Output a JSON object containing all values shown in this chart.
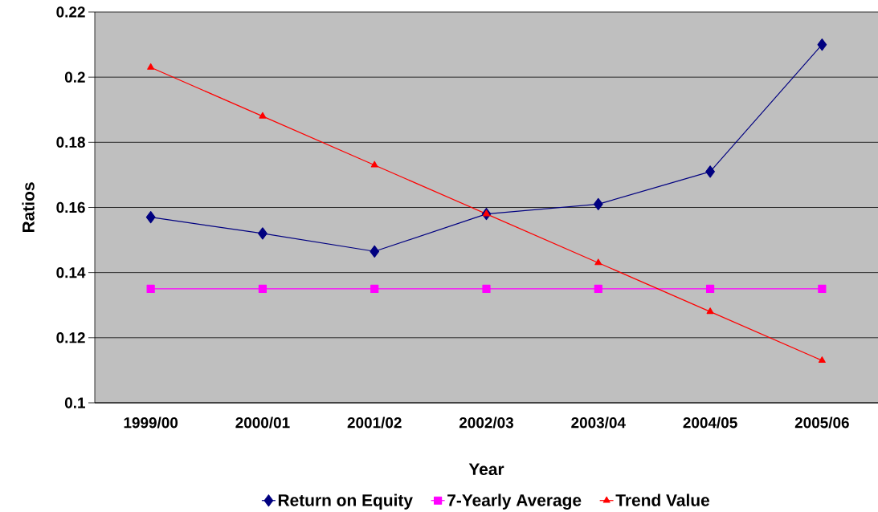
{
  "chart_data": {
    "type": "line",
    "xlabel": "Year",
    "ylabel": "Ratios",
    "categories": [
      "1999/00",
      "2000/01",
      "2001/02",
      "2002/03",
      "2003/04",
      "2004/05",
      "2005/06"
    ],
    "series": [
      {
        "name": "Return on Equity",
        "color": "#000080",
        "marker": "diamond",
        "values": [
          0.157,
          0.152,
          0.1465,
          0.158,
          0.161,
          0.171,
          0.21
        ]
      },
      {
        "name": "7-Yearly Average",
        "color": "#ff00ff",
        "marker": "square",
        "values": [
          0.135,
          0.135,
          0.135,
          0.135,
          0.135,
          0.135,
          0.135
        ]
      },
      {
        "name": "Trend Value",
        "color": "#ff0000",
        "marker": "triangle",
        "values": [
          0.203,
          0.188,
          0.173,
          0.158,
          0.143,
          0.128,
          0.113
        ]
      }
    ],
    "ylim": [
      0.1,
      0.22
    ],
    "yticks": [
      0.1,
      0.12,
      0.14,
      0.16,
      0.18,
      0.2,
      0.22
    ],
    "grid": "y",
    "legend": "bottom",
    "line_style": "solid"
  }
}
